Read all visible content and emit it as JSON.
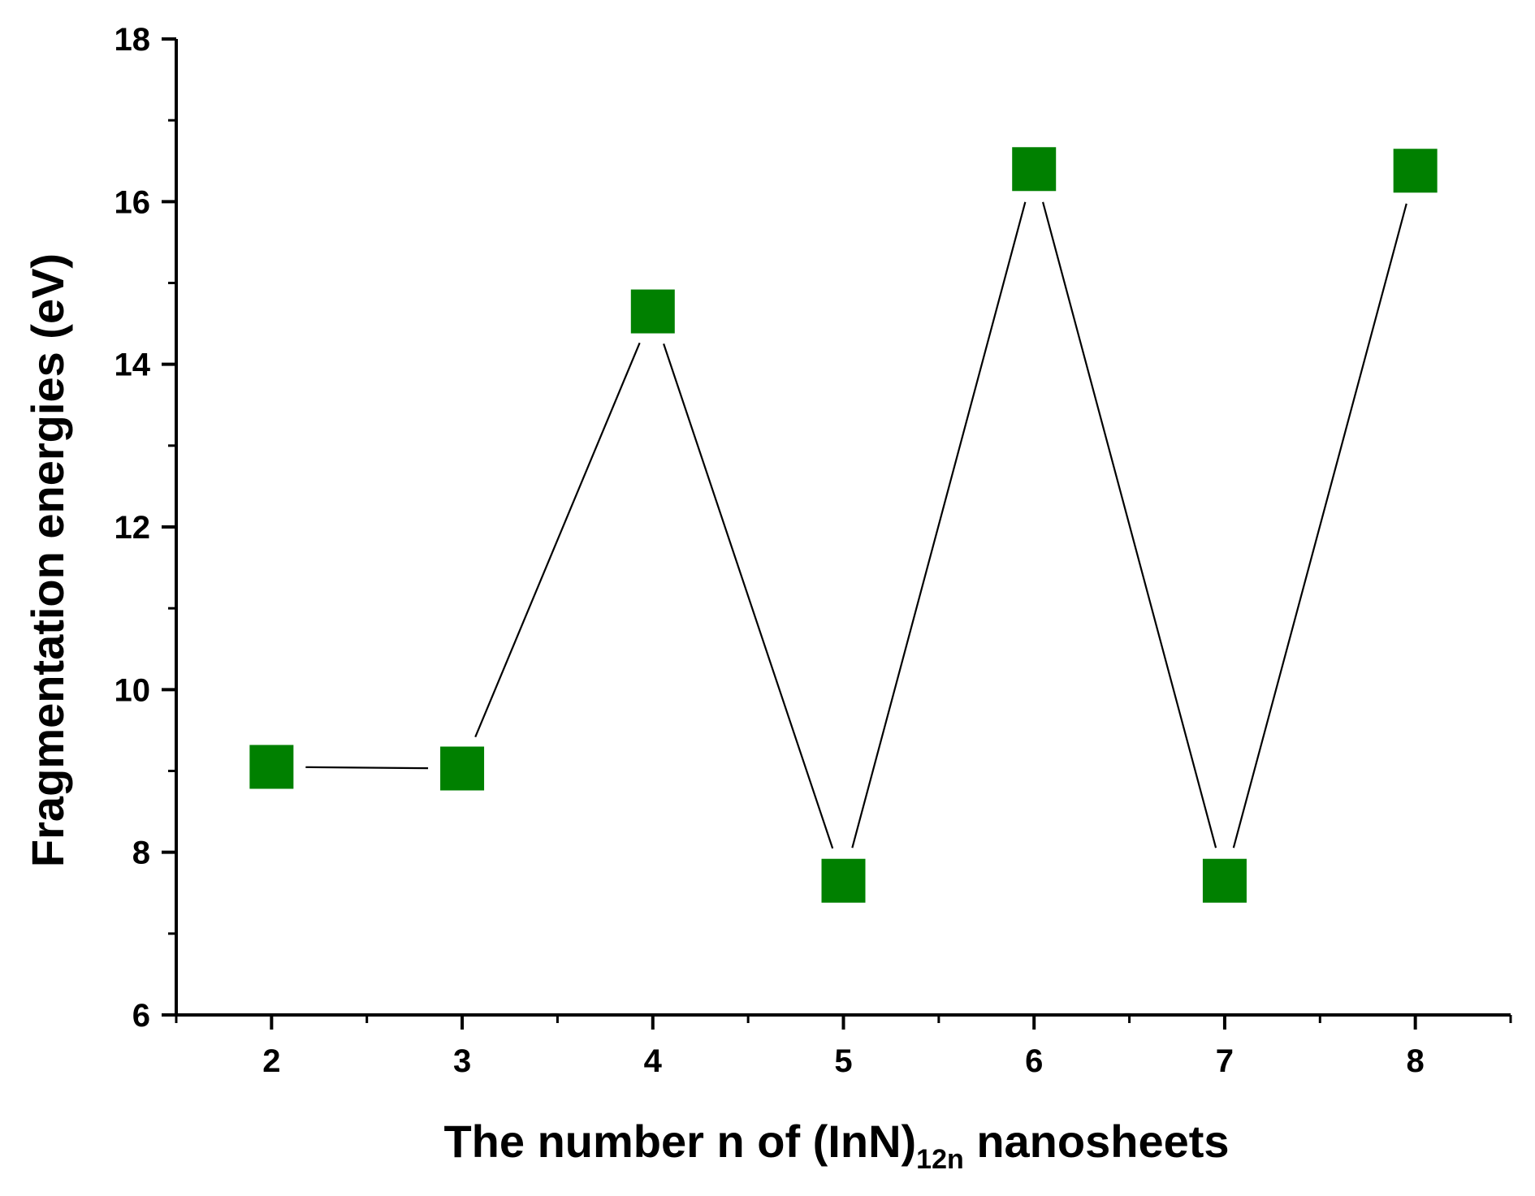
{
  "chart_data": {
    "type": "line",
    "title": "",
    "xlabel_parts": {
      "before": "The number n of (InN)",
      "subscript": "12n",
      "after": " nanosheets"
    },
    "ylabel": "Fragmentation energies (eV)",
    "x": [
      2,
      3,
      4,
      5,
      6,
      7,
      8
    ],
    "series": [
      {
        "values": [
          9.05,
          9.03,
          14.65,
          7.65,
          16.4,
          7.65,
          16.38
        ]
      }
    ],
    "xlim": [
      1.5,
      8.5
    ],
    "ylim": [
      6,
      18
    ],
    "xticks": [
      2,
      3,
      4,
      5,
      6,
      7,
      8
    ],
    "yticks": [
      6,
      8,
      10,
      12,
      14,
      16,
      18
    ],
    "grid": false,
    "legend": "none",
    "marker": "square",
    "colors": {
      "marker": "#008000",
      "line": "#000000",
      "axis": "#000000"
    }
  }
}
